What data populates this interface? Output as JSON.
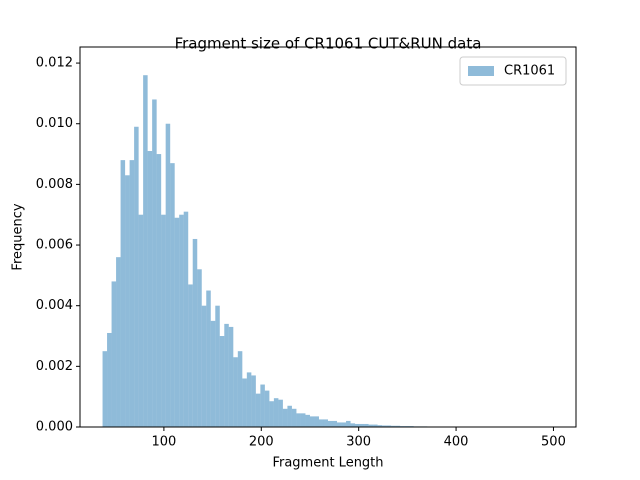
{
  "chart_data": {
    "type": "histogram",
    "title": "Fragment size of CR1061 CUT&RUN data",
    "x_label": "Fragment Length",
    "y_label": "Frequency",
    "legend": "upper right",
    "series": [
      {
        "name": "CR1061",
        "color": "#1f77b4",
        "alpha": 0.5,
        "bins": [
          37,
          41.63,
          46.26,
          50.89,
          55.52,
          60.15,
          64.78,
          69.41,
          74.04,
          78.67,
          83.3,
          87.93,
          92.56,
          97.19,
          101.82,
          106.45,
          111.08,
          115.71,
          120.34,
          124.97,
          129.6,
          134.23,
          138.86,
          143.49,
          148.12,
          152.75,
          157.38,
          162.01,
          166.64,
          171.27,
          175.9,
          180.53,
          185.16,
          189.79,
          194.42,
          199.05,
          203.68,
          208.31,
          212.94,
          217.57,
          222.2,
          226.83,
          231.46,
          236.09,
          240.72,
          245.35,
          249.98,
          254.61,
          259.24,
          263.87,
          268.5,
          273.13,
          277.76,
          282.39,
          287.02,
          291.65,
          296.28,
          300.91,
          305.54,
          310.17,
          314.8,
          319.43,
          324.06,
          328.69,
          333.32,
          337.95,
          342.58,
          347.21,
          351.84,
          356.47,
          361.1,
          365.73,
          370.36,
          374.99,
          379.62,
          384.25,
          388.88,
          393.51,
          398.14,
          402.77,
          407.4,
          412.03,
          416.66,
          421.29,
          425.92,
          430.55,
          435.18,
          439.81,
          444.44,
          449.07,
          453.7,
          458.33,
          462.96,
          467.59,
          472.22,
          476.85,
          481.48,
          486.11,
          490.74,
          495.37,
          500
        ],
        "values": [
          0.0025,
          0.0031,
          0.0048,
          0.0056,
          0.0088,
          0.0083,
          0.0088,
          0.0099,
          0.007,
          0.0116,
          0.0091,
          0.0108,
          0.009,
          0.007,
          0.01,
          0.0087,
          0.0069,
          0.007,
          0.0071,
          0.0047,
          0.0062,
          0.0052,
          0.004,
          0.0045,
          0.0035,
          0.004,
          0.003,
          0.0034,
          0.0033,
          0.0023,
          0.0025,
          0.0016,
          0.0018,
          0.0017,
          0.0011,
          0.0014,
          0.0012,
          0.00085,
          0.00095,
          0.0009,
          0.0006,
          0.0007,
          0.0006,
          0.00045,
          0.00045,
          0.0004,
          0.00035,
          0.00035,
          0.00025,
          0.00025,
          0.0002,
          0.0002,
          0.00015,
          0.00015,
          0.0002,
          0.00012,
          0.0001,
          0.0001,
          0.0001,
          8e-05,
          8e-05,
          6e-05,
          5e-05,
          5e-05,
          4e-05,
          4e-05,
          3e-05,
          3e-05,
          3e-05,
          2e-05,
          2e-05,
          2e-05,
          1e-05,
          1e-05,
          1e-05,
          1e-05,
          1e-05,
          0,
          1e-05,
          0,
          1e-05,
          0,
          0,
          1e-05,
          0,
          0,
          0,
          0,
          0,
          0,
          0,
          0,
          0,
          0,
          0,
          0,
          0,
          0,
          0,
          1e-05
        ]
      }
    ],
    "xlim": [
      13.85,
      523.15
    ],
    "xticks": [
      100,
      200,
      300,
      400,
      500
    ],
    "ylim": [
      0,
      0.01253
    ],
    "yticks": [
      {
        "value": 0,
        "label": "0.000"
      },
      {
        "value": 0.002,
        "label": "0.002"
      },
      {
        "value": 0.004,
        "label": "0.004"
      },
      {
        "value": 0.006,
        "label": "0.006"
      },
      {
        "value": 0.008,
        "label": "0.008"
      },
      {
        "value": 0.01,
        "label": "0.010"
      },
      {
        "value": 0.012,
        "label": "0.012"
      }
    ]
  }
}
